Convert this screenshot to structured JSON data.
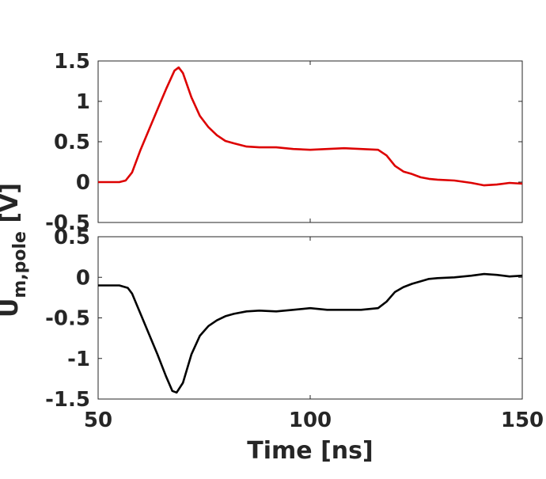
{
  "chart_data": {
    "type": "line",
    "xlabel": "Time [ns]",
    "ylabel_main": "U",
    "ylabel_sub": "m,pole",
    "ylabel_unit": " [V]",
    "xlim": [
      50,
      150
    ],
    "xticks": [
      50,
      100,
      150
    ],
    "xtick_labels": [
      "50",
      "100",
      "150"
    ],
    "grid": false,
    "panels": [
      {
        "name": "top",
        "color": "#dd0000",
        "ylim": [
          -0.5,
          1.5
        ],
        "yticks": [
          -0.5,
          0,
          0.5,
          1,
          1.5
        ],
        "ytick_labels": [
          "-0.5",
          "0",
          "0.5",
          "1",
          "1.5"
        ],
        "x": [
          50,
          55,
          56.5,
          58,
          60,
          62,
          64,
          66,
          68,
          69,
          70,
          72,
          74,
          76,
          78,
          80,
          82,
          85,
          88,
          92,
          96,
          100,
          104,
          108,
          112,
          116,
          118,
          120,
          122,
          124,
          126,
          128,
          130,
          134,
          138,
          141,
          144,
          147,
          150
        ],
        "values": [
          0,
          0,
          0.02,
          0.12,
          0.4,
          0.65,
          0.9,
          1.15,
          1.38,
          1.42,
          1.35,
          1.05,
          0.82,
          0.68,
          0.58,
          0.51,
          0.48,
          0.44,
          0.43,
          0.43,
          0.41,
          0.4,
          0.41,
          0.42,
          0.41,
          0.4,
          0.33,
          0.2,
          0.13,
          0.1,
          0.06,
          0.04,
          0.03,
          0.02,
          -0.01,
          -0.04,
          -0.03,
          -0.01,
          -0.02
        ]
      },
      {
        "name": "bottom",
        "color": "#000000",
        "ylim": [
          -1.5,
          0.5
        ],
        "yticks": [
          -1.5,
          -1,
          -0.5,
          0,
          0.5
        ],
        "ytick_labels": [
          "-1.5",
          "-1",
          "-0.5",
          "0",
          "0.5"
        ],
        "x": [
          50,
          55,
          57,
          58,
          60,
          62,
          64,
          66,
          67.5,
          68.5,
          70,
          72,
          74,
          76,
          78,
          80,
          82,
          85,
          88,
          92,
          96,
          100,
          104,
          108,
          112,
          116,
          118,
          120,
          122,
          124,
          126,
          128,
          130,
          134,
          138,
          141,
          144,
          147,
          150
        ],
        "values": [
          -0.1,
          -0.1,
          -0.13,
          -0.2,
          -0.45,
          -0.7,
          -0.95,
          -1.22,
          -1.4,
          -1.42,
          -1.3,
          -0.95,
          -0.72,
          -0.6,
          -0.53,
          -0.48,
          -0.45,
          -0.42,
          -0.41,
          -0.42,
          -0.4,
          -0.38,
          -0.4,
          -0.4,
          -0.4,
          -0.38,
          -0.3,
          -0.18,
          -0.12,
          -0.08,
          -0.05,
          -0.02,
          -0.01,
          0,
          0.02,
          0.04,
          0.03,
          0.01,
          0.02
        ]
      }
    ]
  }
}
